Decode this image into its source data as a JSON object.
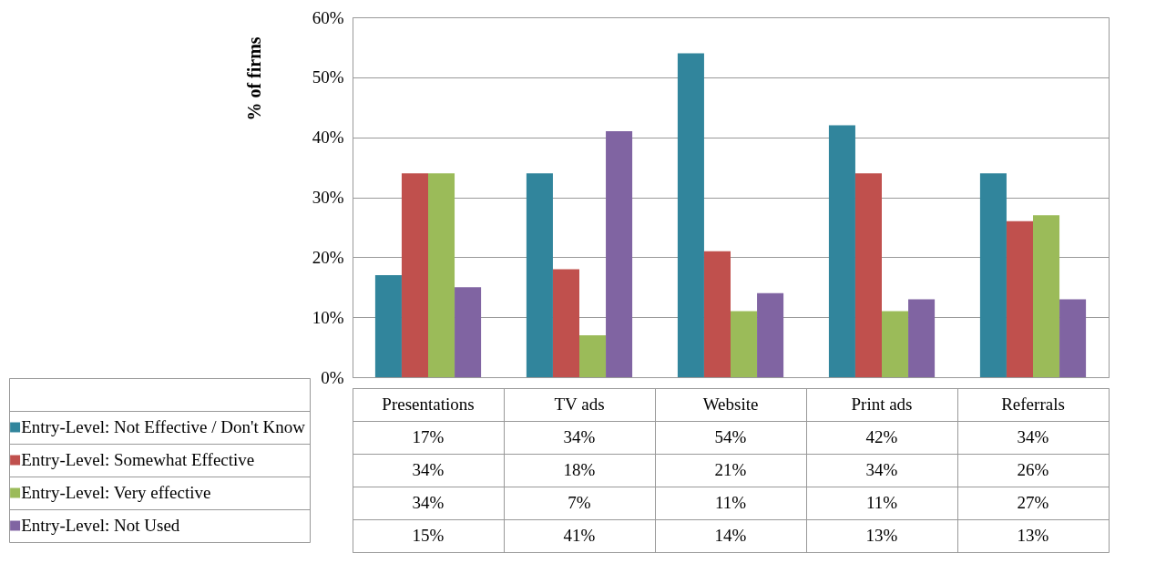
{
  "chart_data": {
    "type": "bar",
    "ylabel": "% of firms",
    "categories": [
      "Presentations",
      "TV ads",
      "Website",
      "Print ads",
      "Referrals"
    ],
    "series": [
      {
        "name": "Entry-Level: Not Effective / Don't Know",
        "color": "#31859c",
        "values": [
          17,
          34,
          54,
          42,
          34
        ],
        "value_labels": [
          "17%",
          "34%",
          "54%",
          "42%",
          "34%"
        ]
      },
      {
        "name": "Entry-Level: Somewhat Effective",
        "color": "#c0504d",
        "values": [
          34,
          18,
          21,
          34,
          26
        ],
        "value_labels": [
          "34%",
          "18%",
          "21%",
          "34%",
          "26%"
        ]
      },
      {
        "name": "Entry-Level: Very effective",
        "color": "#9bbb59",
        "values": [
          34,
          7,
          11,
          11,
          27
        ],
        "value_labels": [
          "34%",
          "7%",
          "11%",
          "11%",
          "27%"
        ]
      },
      {
        "name": "Entry-Level: Not Used",
        "color": "#8064a2",
        "values": [
          15,
          41,
          14,
          13,
          13
        ],
        "value_labels": [
          "15%",
          "41%",
          "14%",
          "13%",
          "13%"
        ]
      }
    ],
    "ylim": [
      0,
      60
    ],
    "yticks": [
      {
        "value": 0,
        "label": "0%"
      },
      {
        "value": 10,
        "label": "10%"
      },
      {
        "value": 20,
        "label": "20%"
      },
      {
        "value": 30,
        "label": "30%"
      },
      {
        "value": 40,
        "label": "40%"
      },
      {
        "value": 50,
        "label": "50%"
      },
      {
        "value": 60,
        "label": "60%"
      }
    ],
    "grid": "y",
    "legend": "bottom left"
  }
}
